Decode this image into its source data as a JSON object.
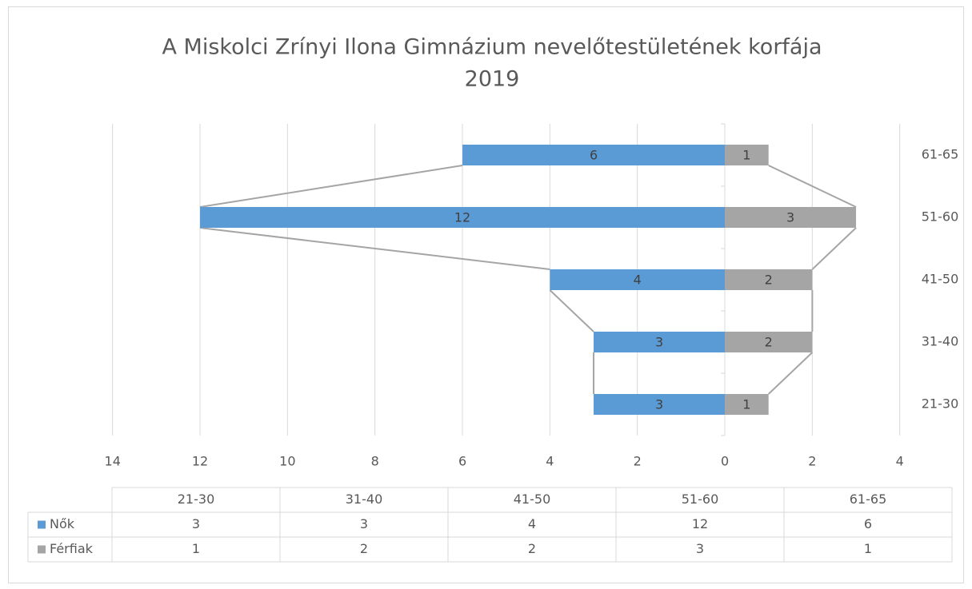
{
  "chart_data": {
    "type": "pyramid",
    "title": "A Miskolci Zrínyi Ilona Gimnázium nevelőtestületének korfája",
    "subtitle": "2019",
    "categories": [
      "21-30",
      "31-40",
      "41-50",
      "51-60",
      "61-65"
    ],
    "series": [
      {
        "name": "Nők",
        "color": "#5b9bd5",
        "values": [
          3,
          3,
          4,
          12,
          6
        ]
      },
      {
        "name": "Férfiak",
        "color": "#a5a5a5",
        "values": [
          1,
          2,
          2,
          3,
          1
        ]
      }
    ],
    "xlim": [
      -14,
      4
    ],
    "xticks": [
      {
        "value": -14,
        "label": "14"
      },
      {
        "value": -12,
        "label": "12"
      },
      {
        "value": -10,
        "label": "10"
      },
      {
        "value": -8,
        "label": "8"
      },
      {
        "value": -6,
        "label": "6"
      },
      {
        "value": -4,
        "label": "4"
      },
      {
        "value": -2,
        "label": "2"
      },
      0,
      2,
      4
    ],
    "grid": true
  }
}
